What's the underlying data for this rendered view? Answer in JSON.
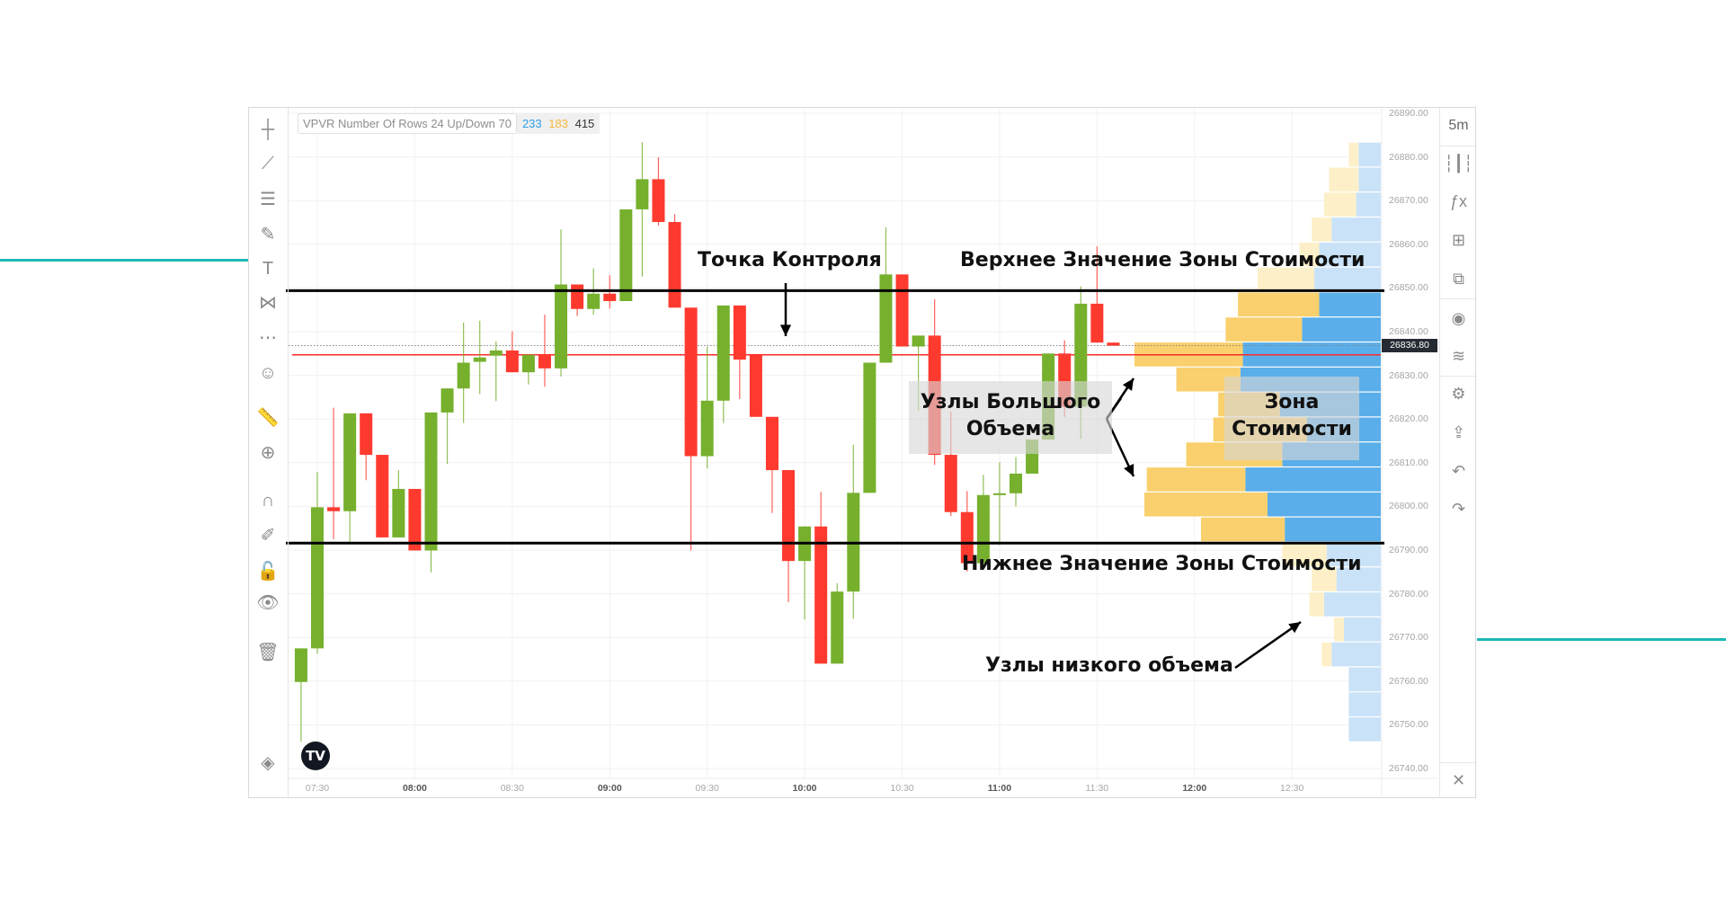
{
  "legend": {
    "indicator": "VPVR Number Of Rows 24 Up/Down 70",
    "up_value": "233",
    "down_value": "183",
    "total_value": "415",
    "up_color": "#2f9ee8",
    "down_color": "#f6b73c"
  },
  "toolbar_right": {
    "interval": "5m",
    "icons": [
      "candles-icon",
      "fx-icon",
      "fit-icon",
      "compare-icon",
      "visibility-icon",
      "layers-icon",
      "gear-icon",
      "share-icon",
      "undo-icon",
      "redo-icon",
      "close-icon"
    ]
  },
  "toolbar_left": {
    "icons": [
      "crosshair-icon",
      "trendline-icon",
      "parallel-lines-icon",
      "brush-icon",
      "text-icon",
      "pattern-icon",
      "fib-icon",
      "emoji-icon",
      "ruler-icon",
      "zoom-in-icon",
      "magnet-icon",
      "lock-drawing-icon",
      "unlock-icon",
      "eye-icon",
      "trash-icon",
      "layers-icon"
    ]
  },
  "logo_text": "TV",
  "annotations": {
    "poc": "Точка Контроля",
    "vah": "Верхнее Значение Зоны Стоимости",
    "val": "Нижнее Значение Зоны Стоимости",
    "hvn_line1": "Узлы Большого",
    "hvn_line2": "Объема",
    "va_line1": "Зона",
    "va_line2": "Стоимости",
    "lvn": "Узлы низкого объема"
  },
  "colors": {
    "up_candle": "#76b02d",
    "down_candle": "#fe3a2f",
    "vp_up_va": "#5aaee9",
    "vp_down_va": "#f9d06d",
    "vp_up_out": "#c9e2f8",
    "vp_down_out": "#fdf0c9",
    "poc_line": "#ff2a2a",
    "va_line": "#000000",
    "accent_teal": "#1fb8b3"
  },
  "chart_data": {
    "type": "candlestick",
    "timeframe": "5m",
    "ylim": [
      26740,
      26890
    ],
    "grid": true,
    "price_ticks": [
      "26890.00",
      "26880.00",
      "26870.00",
      "26860.00",
      "26850.00",
      "26840.00",
      "26830.00",
      "26820.00",
      "26810.00",
      "26800.00",
      "26790.00",
      "26780.00",
      "26770.00",
      "26760.00",
      "26750.00",
      "26740.00"
    ],
    "time_ticks": [
      {
        "label": "07:30",
        "hour": false
      },
      {
        "label": "08:00",
        "hour": true
      },
      {
        "label": "08:30",
        "hour": false
      },
      {
        "label": "09:00",
        "hour": true
      },
      {
        "label": "09:30",
        "hour": false
      },
      {
        "label": "10:00",
        "hour": true
      },
      {
        "label": "10:30",
        "hour": false
      },
      {
        "label": "11:00",
        "hour": true
      },
      {
        "label": "11:30",
        "hour": false
      },
      {
        "label": "12:00",
        "hour": true
      },
      {
        "label": "12:30",
        "hour": false
      }
    ],
    "last_price": "26836.80",
    "poc_price": 26834.7,
    "value_area_high": 26849.4,
    "value_area_low": 26791.6,
    "candles": [
      [
        "07:25",
        26759.8,
        26767.5,
        26746.1,
        26767.5
      ],
      [
        "07:30",
        26767.5,
        26807.9,
        26766.3,
        26799.8
      ],
      [
        "07:35",
        26799.8,
        26822.6,
        26792.5,
        26798.9
      ],
      [
        "07:40",
        26798.9,
        26821.3,
        26791.6,
        26821.3
      ],
      [
        "07:45",
        26821.3,
        26821.3,
        26806.0,
        26811.8
      ],
      [
        "07:50",
        26811.8,
        26811.8,
        26792.9,
        26792.9
      ],
      [
        "07:55",
        26792.9,
        26808.3,
        26792.9,
        26804.0
      ],
      [
        "08:00",
        26804.0,
        26804.0,
        26789.9,
        26789.9
      ],
      [
        "08:05",
        26789.9,
        26821.5,
        26784.9,
        26821.5
      ],
      [
        "08:10",
        26821.5,
        26827.0,
        26809.7,
        26827.0
      ],
      [
        "08:15",
        26827.0,
        26842.1,
        26819.1,
        26832.9
      ],
      [
        "08:20",
        26833.1,
        26842.5,
        26825.7,
        26834.1
      ],
      [
        "08:25",
        26834.5,
        26837.8,
        26824.1,
        26835.7
      ],
      [
        "08:30",
        26835.7,
        26840.1,
        26830.7,
        26830.7
      ],
      [
        "08:35",
        26830.7,
        26834.7,
        26827.9,
        26834.7
      ],
      [
        "08:40",
        26834.7,
        26843.9,
        26827.4,
        26831.6
      ],
      [
        "08:45",
        26831.6,
        26863.4,
        26829.7,
        26850.8
      ],
      [
        "08:50",
        26850.8,
        26850.8,
        26843.6,
        26845.2
      ],
      [
        "08:55",
        26845.2,
        26854.5,
        26843.9,
        26848.7
      ],
      [
        "09:00",
        26848.7,
        26852.9,
        26845.3,
        26847.0
      ],
      [
        "09:05",
        26847.0,
        26868.0,
        26847.0,
        26868.0
      ],
      [
        "09:10",
        26868.0,
        26883.4,
        26852.6,
        26874.9
      ],
      [
        "09:15",
        26874.9,
        26879.9,
        26864.3,
        26865.1
      ],
      [
        "09:20",
        26865.1,
        26866.9,
        26845.5,
        26845.5
      ],
      [
        "09:25",
        26845.5,
        26845.5,
        26789.9,
        26811.5
      ],
      [
        "09:30",
        26811.5,
        26836.6,
        26808.7,
        26824.2
      ],
      [
        "09:35",
        26824.2,
        26846.0,
        26819.1,
        26846.0
      ],
      [
        "09:40",
        26846.0,
        26846.0,
        26824.6,
        26833.6
      ],
      [
        "09:45",
        26834.6,
        26834.6,
        26820.5,
        26820.5
      ],
      [
        "09:50",
        26820.5,
        26820.5,
        26798.5,
        26808.3
      ],
      [
        "09:55",
        26808.3,
        26808.3,
        26778.1,
        26787.5
      ],
      [
        "10:00",
        26787.5,
        26795.4,
        26774.1,
        26795.4
      ],
      [
        "10:05",
        26795.4,
        26803.3,
        26764.0,
        26764.0
      ],
      [
        "10:10",
        26764.0,
        26782.4,
        26764.0,
        26780.5
      ],
      [
        "10:15",
        26780.5,
        26814.1,
        26774.3,
        26803.1
      ],
      [
        "10:20",
        26803.1,
        26832.9,
        26803.1,
        26832.9
      ],
      [
        "10:25",
        26832.9,
        26863.9,
        26832.9,
        26853.1
      ],
      [
        "10:30",
        26853.1,
        26853.1,
        26836.6,
        26836.6
      ],
      [
        "10:35",
        26836.6,
        26839.1,
        26821.9,
        26839.1
      ],
      [
        "10:40",
        26839.1,
        26847.4,
        26809.5,
        26811.8
      ],
      [
        "10:45",
        26811.8,
        26821.7,
        26797.8,
        26798.7
      ],
      [
        "10:50",
        26798.7,
        26803.5,
        26785.1,
        26787.0
      ],
      [
        "10:55",
        26787.0,
        26807.2,
        26787.0,
        26802.6
      ],
      [
        "11:00",
        26802.8,
        26810.1,
        26791.1,
        26803.0
      ],
      [
        "11:05",
        26803.0,
        26811.3,
        26800.0,
        26807.5
      ],
      [
        "11:10",
        26807.5,
        26815.3,
        26807.5,
        26815.3
      ],
      [
        "11:15",
        26815.3,
        26835.0,
        26815.3,
        26835.0
      ],
      [
        "11:20",
        26835.0,
        26838.0,
        26820.5,
        26822.8
      ],
      [
        "11:25",
        26822.8,
        26850.4,
        26815.5,
        26846.4
      ],
      [
        "11:30",
        26846.4,
        26859.5,
        26837.5,
        26837.5
      ],
      [
        "11:35",
        26837.5,
        26837.5,
        26836.8,
        26836.8
      ]
    ],
    "volume_profile": {
      "rows": 24,
      "price_high": 26883.4,
      "price_low": 26746.1,
      "unit": "percent of max row volume",
      "up": [
        9,
        9,
        10,
        20,
        25,
        27,
        25,
        32,
        56,
        57,
        41,
        30,
        40,
        55,
        46,
        39,
        22,
        18,
        23,
        15,
        20,
        13,
        13,
        13
      ],
      "down": [
        4,
        12,
        13,
        8,
        8,
        23,
        33,
        31,
        44,
        26,
        25,
        38,
        39,
        40,
        50,
        34,
        18,
        10,
        6,
        4,
        4,
        0,
        0,
        0
      ]
    }
  }
}
